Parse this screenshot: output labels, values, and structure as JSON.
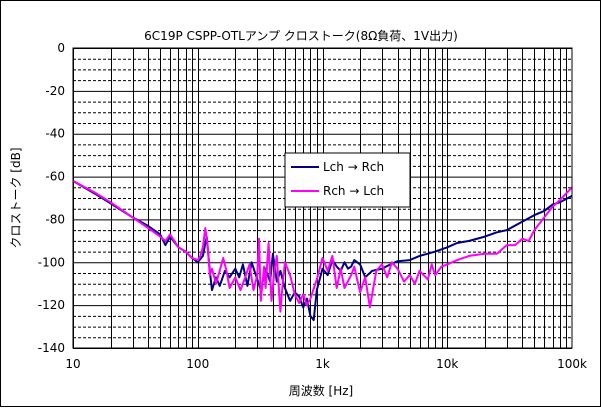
{
  "chart_data": {
    "type": "line",
    "title": "6C19P CSPP-OTLアンプ クロストーク(8Ω負荷、1V出力)",
    "xlabel": "周波数 [Hz]",
    "ylabel": "クロストーク [dB]",
    "x_scale": "log",
    "xlim": [
      10,
      100000
    ],
    "ylim": [
      -140,
      0
    ],
    "x_ticks": [
      10,
      100,
      1000,
      10000,
      100000
    ],
    "x_tick_labels": [
      "10",
      "100",
      "1k",
      "10k",
      "100k"
    ],
    "y_ticks": [
      0,
      -20,
      -40,
      -60,
      -80,
      -100,
      -120,
      -140
    ],
    "y_tick_labels": [
      "0",
      "-20",
      "-40",
      "-60",
      "-80",
      "-100",
      "-120",
      "-140"
    ],
    "grid": true,
    "legend_position": "center-right",
    "series": [
      {
        "name": "Lch → Rch",
        "color": "#000080",
        "points": [
          [
            10,
            -62
          ],
          [
            15,
            -68
          ],
          [
            20,
            -72.5
          ],
          [
            30,
            -79
          ],
          [
            40,
            -83
          ],
          [
            50,
            -87
          ],
          [
            55,
            -92
          ],
          [
            60,
            -88
          ],
          [
            70,
            -93
          ],
          [
            80,
            -95
          ],
          [
            90,
            -98
          ],
          [
            100,
            -100
          ],
          [
            110,
            -97
          ],
          [
            118,
            -88
          ],
          [
            125,
            -104
          ],
          [
            130,
            -113
          ],
          [
            140,
            -107
          ],
          [
            150,
            -111
          ],
          [
            165,
            -104
          ],
          [
            180,
            -107
          ],
          [
            200,
            -103
          ],
          [
            215,
            -107
          ],
          [
            230,
            -101
          ],
          [
            250,
            -111
          ],
          [
            270,
            -100
          ],
          [
            300,
            -108
          ],
          [
            320,
            -113
          ],
          [
            350,
            -103
          ],
          [
            380,
            -109
          ],
          [
            400,
            -96
          ],
          [
            430,
            -109
          ],
          [
            460,
            -104
          ],
          [
            500,
            -112
          ],
          [
            550,
            -118
          ],
          [
            600,
            -114
          ],
          [
            650,
            -116
          ],
          [
            700,
            -121
          ],
          [
            750,
            -117
          ],
          [
            800,
            -125
          ],
          [
            850,
            -127
          ],
          [
            900,
            -113
          ],
          [
            1000,
            -103
          ],
          [
            1100,
            -106
          ],
          [
            1200,
            -99
          ],
          [
            1300,
            -102
          ],
          [
            1400,
            -104
          ],
          [
            1500,
            -100
          ],
          [
            1600,
            -103
          ],
          [
            1700,
            -102
          ],
          [
            1800,
            -99
          ],
          [
            2000,
            -101
          ],
          [
            2200,
            -107
          ],
          [
            2500,
            -104
          ],
          [
            3000,
            -103
          ],
          [
            3500,
            -101
          ],
          [
            4000,
            -99.5
          ],
          [
            5000,
            -99
          ],
          [
            6000,
            -97
          ],
          [
            7000,
            -96
          ],
          [
            8000,
            -95
          ],
          [
            10000,
            -93
          ],
          [
            12000,
            -91
          ],
          [
            15000,
            -90
          ],
          [
            20000,
            -88
          ],
          [
            25000,
            -86
          ],
          [
            30000,
            -85
          ],
          [
            40000,
            -81
          ],
          [
            50000,
            -78
          ],
          [
            60000,
            -76
          ],
          [
            70000,
            -73
          ],
          [
            80000,
            -72
          ],
          [
            100000,
            -69
          ]
        ]
      },
      {
        "name": "Rch → Lch",
        "color": "#ff00ff",
        "points": [
          [
            10,
            -62
          ],
          [
            15,
            -67.5
          ],
          [
            20,
            -72
          ],
          [
            30,
            -79
          ],
          [
            40,
            -84
          ],
          [
            50,
            -88
          ],
          [
            55,
            -90
          ],
          [
            60,
            -87
          ],
          [
            70,
            -93
          ],
          [
            80,
            -95
          ],
          [
            90,
            -98
          ],
          [
            100,
            -99
          ],
          [
            105,
            -97
          ],
          [
            110,
            -93
          ],
          [
            115,
            -84
          ],
          [
            120,
            -92
          ],
          [
            125,
            -106
          ],
          [
            130,
            -103
          ],
          [
            140,
            -110
          ],
          [
            150,
            -104
          ],
          [
            160,
            -98
          ],
          [
            170,
            -104
          ],
          [
            180,
            -112
          ],
          [
            200,
            -107
          ],
          [
            220,
            -113
          ],
          [
            240,
            -107
          ],
          [
            260,
            -101
          ],
          [
            280,
            -113
          ],
          [
            300,
            -106
          ],
          [
            310,
            -89
          ],
          [
            320,
            -118
          ],
          [
            340,
            -102
          ],
          [
            350,
            -112
          ],
          [
            370,
            -91
          ],
          [
            390,
            -118
          ],
          [
            410,
            -105
          ],
          [
            430,
            -97
          ],
          [
            460,
            -123
          ],
          [
            480,
            -110
          ],
          [
            500,
            -100
          ],
          [
            550,
            -106
          ],
          [
            600,
            -115
          ],
          [
            650,
            -119
          ],
          [
            700,
            -115
          ],
          [
            750,
            -120
          ],
          [
            800,
            -117
          ],
          [
            900,
            -108
          ],
          [
            1000,
            -98
          ],
          [
            1100,
            -104
          ],
          [
            1200,
            -97
          ],
          [
            1300,
            -112
          ],
          [
            1400,
            -103
          ],
          [
            1500,
            -112
          ],
          [
            1700,
            -106
          ],
          [
            1800,
            -102
          ],
          [
            2000,
            -114
          ],
          [
            2200,
            -107
          ],
          [
            2400,
            -121
          ],
          [
            2700,
            -104
          ],
          [
            3000,
            -101
          ],
          [
            3300,
            -107
          ],
          [
            3600,
            -100
          ],
          [
            4000,
            -103
          ],
          [
            4500,
            -109
          ],
          [
            5000,
            -106
          ],
          [
            5500,
            -110
          ],
          [
            6000,
            -104
          ],
          [
            7000,
            -108
          ],
          [
            7500,
            -101
          ],
          [
            8000,
            -106
          ],
          [
            9000,
            -102
          ],
          [
            10000,
            -101
          ],
          [
            12000,
            -99
          ],
          [
            15000,
            -97
          ],
          [
            20000,
            -96
          ],
          [
            25000,
            -96
          ],
          [
            30000,
            -92
          ],
          [
            35000,
            -92
          ],
          [
            40000,
            -89
          ],
          [
            45000,
            -90
          ],
          [
            50000,
            -85
          ],
          [
            60000,
            -79
          ],
          [
            70000,
            -74
          ],
          [
            80000,
            -71
          ],
          [
            100000,
            -65
          ]
        ]
      }
    ]
  }
}
